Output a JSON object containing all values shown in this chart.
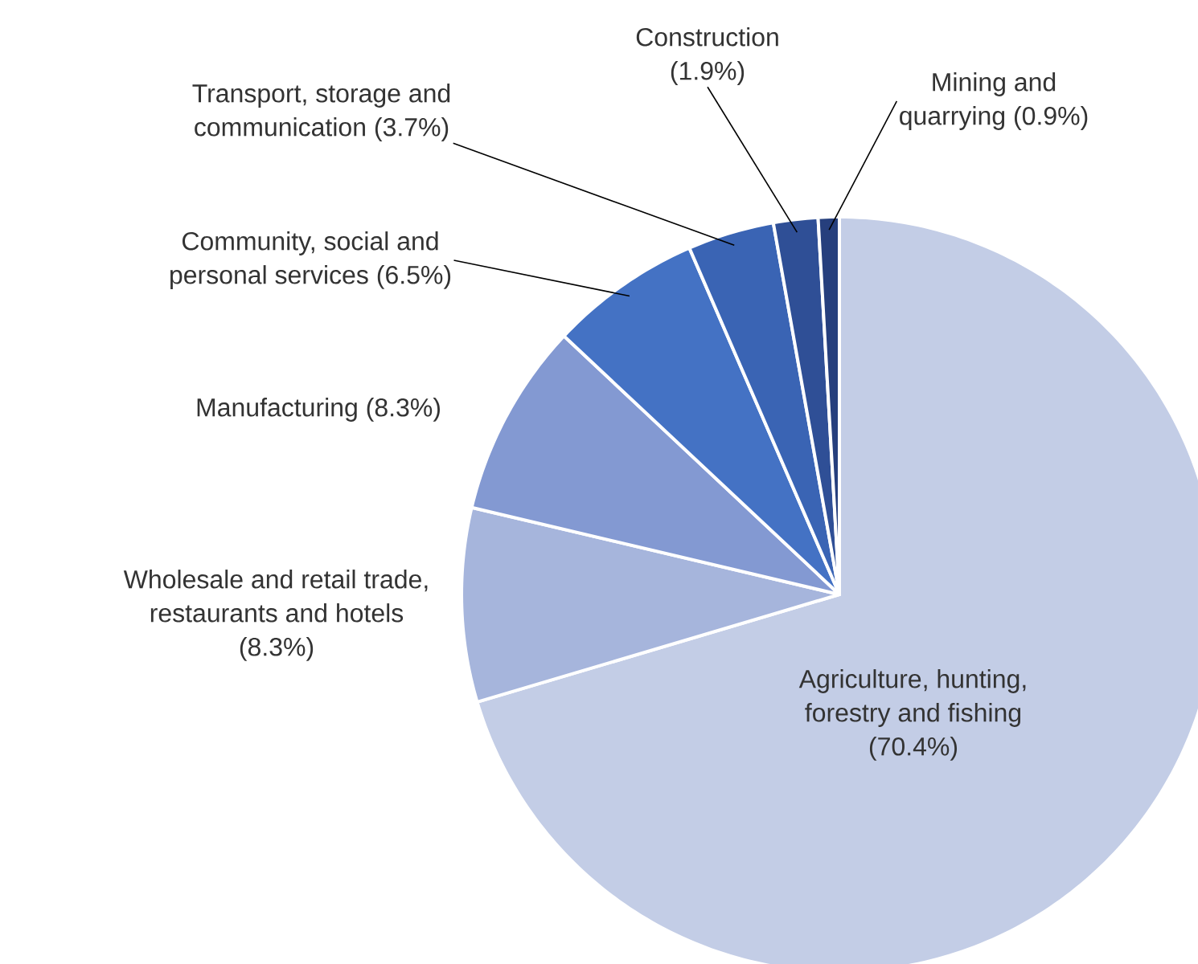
{
  "chart_data": {
    "type": "pie",
    "categories": [
      "Agriculture, hunting, forestry and fishing",
      "Wholesale and retail trade, restaurants and hotels",
      "Manufacturing",
      "Community, social and personal services",
      "Transport, storage and communication",
      "Construction",
      "Mining and quarrying"
    ],
    "values": [
      70.4,
      8.3,
      8.3,
      6.5,
      3.7,
      1.9,
      0.9
    ],
    "value_labels": [
      "(70.4%)",
      "(8.3%)",
      "(8.3%)",
      "(6.5%)",
      "(3.7%)",
      "(1.9%)",
      "(0.9%)"
    ],
    "colors": [
      "#c3cde6",
      "#a6b5dc",
      "#8399d2",
      "#4472c4",
      "#3a64b4",
      "#2f4f96",
      "#263f7d"
    ]
  }
}
